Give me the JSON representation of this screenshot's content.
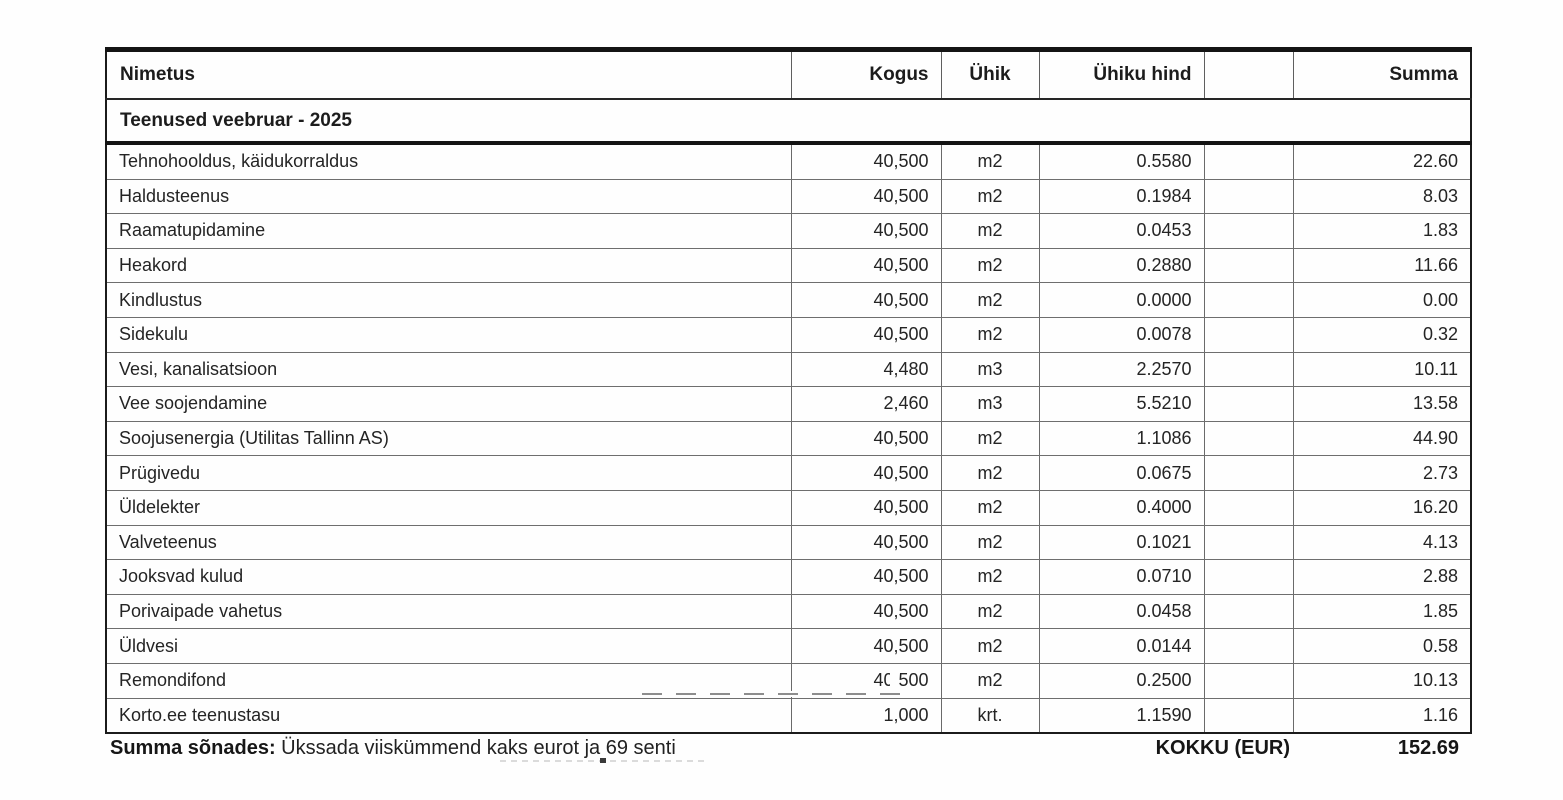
{
  "table": {
    "columns": {
      "name": "Nimetus",
      "qty": "Kogus",
      "unit": "Ühik",
      "unit_price": "Ühiku hind",
      "extra": "",
      "sum": "Summa"
    },
    "section_header": "Teenused veebruar - 2025",
    "rows": [
      {
        "name": "Tehnohooldus, käidukorraldus",
        "qty": "40,500",
        "unit": "m2",
        "unit_price": "0.5580",
        "sum": "22.60"
      },
      {
        "name": "Haldusteenus",
        "qty": "40,500",
        "unit": "m2",
        "unit_price": "0.1984",
        "sum": "8.03"
      },
      {
        "name": "Raamatupidamine",
        "qty": "40,500",
        "unit": "m2",
        "unit_price": "0.0453",
        "sum": "1.83"
      },
      {
        "name": "Heakord",
        "qty": "40,500",
        "unit": "m2",
        "unit_price": "0.2880",
        "sum": "11.66"
      },
      {
        "name": "Kindlustus",
        "qty": "40,500",
        "unit": "m2",
        "unit_price": "0.0000",
        "sum": "0.00"
      },
      {
        "name": "Sidekulu",
        "qty": "40,500",
        "unit": "m2",
        "unit_price": "0.0078",
        "sum": "0.32"
      },
      {
        "name": "Vesi, kanalisatsioon",
        "qty": "4,480",
        "unit": "m3",
        "unit_price": "2.2570",
        "sum": "10.11"
      },
      {
        "name": "Vee soojendamine",
        "qty": "2,460",
        "unit": "m3",
        "unit_price": "5.5210",
        "sum": "13.58"
      },
      {
        "name": "Soojusenergia (Utilitas Tallinn AS)",
        "qty": "40,500",
        "unit": "m2",
        "unit_price": "1.1086",
        "sum": "44.90"
      },
      {
        "name": "Prügivedu",
        "qty": "40,500",
        "unit": "m2",
        "unit_price": "0.0675",
        "sum": "2.73"
      },
      {
        "name": "Üldelekter",
        "qty": "40,500",
        "unit": "m2",
        "unit_price": "0.4000",
        "sum": "16.20"
      },
      {
        "name": "Valveteenus",
        "qty": "40,500",
        "unit": "m2",
        "unit_price": "0.1021",
        "sum": "4.13"
      },
      {
        "name": "Jooksvad kulud",
        "qty": "40,500",
        "unit": "m2",
        "unit_price": "0.0710",
        "sum": "2.88"
      },
      {
        "name": "Porivaipade vahetus",
        "qty": "40,500",
        "unit": "m2",
        "unit_price": "0.0458",
        "sum": "1.85"
      },
      {
        "name": "Üldvesi",
        "qty": "40,500",
        "unit": "m2",
        "unit_price": "0.0144",
        "sum": "0.58"
      },
      {
        "name": "Remondifond",
        "qty": "40,500",
        "unit": "m2",
        "unit_price": "0.2500",
        "sum": "10.13"
      },
      {
        "name": "Korto.ee teenustasu",
        "qty": "1,000",
        "unit": "krt.",
        "unit_price": "1.1590",
        "sum": "1.16"
      }
    ]
  },
  "footer": {
    "in_words_label": "Summa sõnades:",
    "in_words_text": " Ükssada viiskümmend kaks eurot ja 69 senti",
    "total_label": "KOKKU (EUR)",
    "total_value": "152.69"
  },
  "colors": {
    "text": "#212121",
    "border_heavy": "#141414",
    "border_light": "#6e6e6e",
    "background": "#fefefe"
  }
}
